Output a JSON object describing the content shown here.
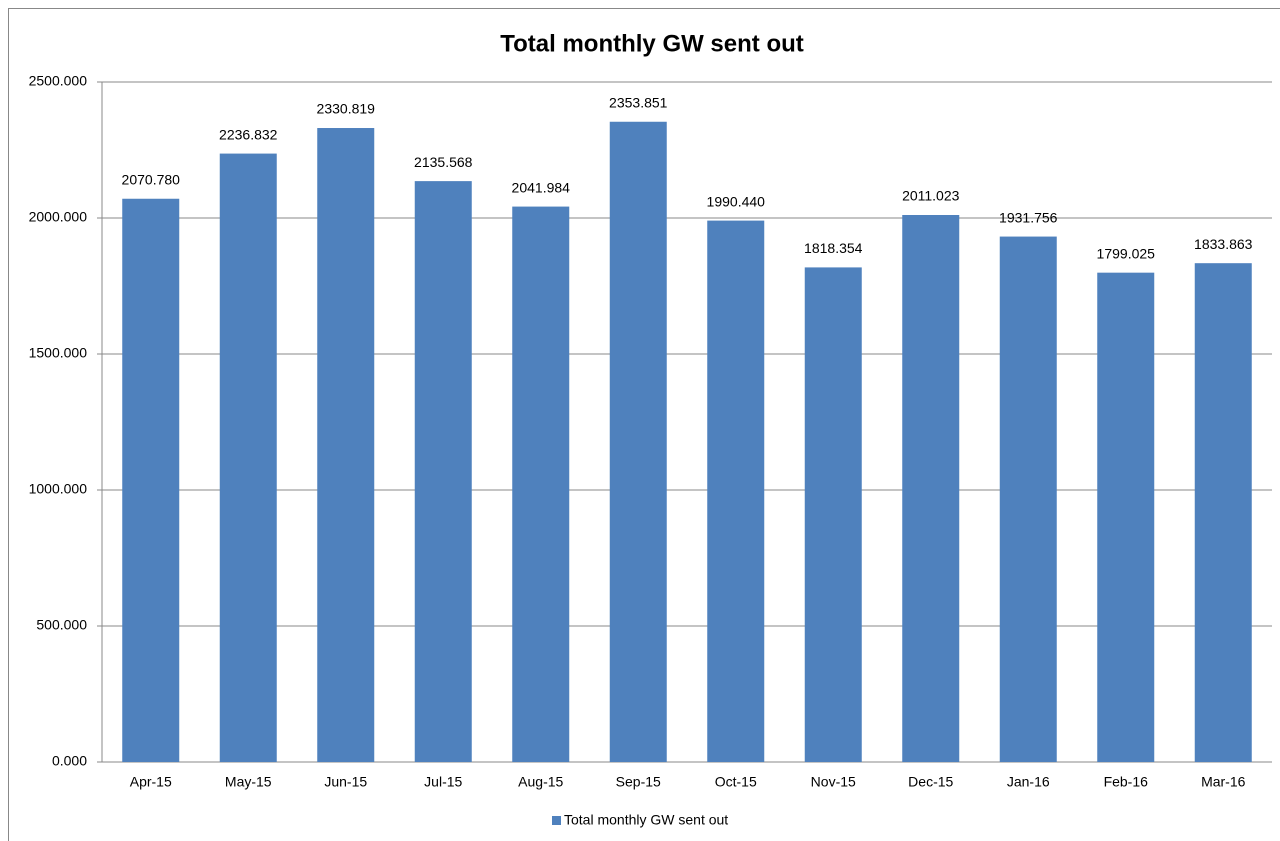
{
  "chart_data": {
    "type": "bar",
    "title": "Total monthly GW sent out",
    "categories": [
      "Apr-15",
      "May-15",
      "Jun-15",
      "Jul-15",
      "Aug-15",
      "Sep-15",
      "Oct-15",
      "Nov-15",
      "Dec-15",
      "Jan-16",
      "Feb-16",
      "Mar-16"
    ],
    "series": [
      {
        "name": "Total monthly GW sent out",
        "color": "#4f81bd",
        "values": [
          2070.78,
          2236.832,
          2330.819,
          2135.568,
          2041.984,
          2353.851,
          1990.44,
          1818.354,
          2011.023,
          1931.756,
          1799.025,
          1833.863
        ],
        "value_labels": [
          "2070.780",
          "2236.832",
          "2330.819",
          "2135.568",
          "2041.984",
          "2353.851",
          "1990.440",
          "1818.354",
          "2011.023",
          "1931.756",
          "1799.025",
          "1833.863"
        ]
      }
    ],
    "ylim": [
      0,
      2500
    ],
    "yticks": [
      {
        "value": 0,
        "label": "0.000"
      },
      {
        "value": 500,
        "label": "500.000"
      },
      {
        "value": 1000,
        "label": "1000.000"
      },
      {
        "value": 1500,
        "label": "1500.000"
      },
      {
        "value": 2000,
        "label": "2000.000"
      },
      {
        "value": 2500,
        "label": "2500.000"
      }
    ],
    "grid": true,
    "legend": "bottom"
  }
}
